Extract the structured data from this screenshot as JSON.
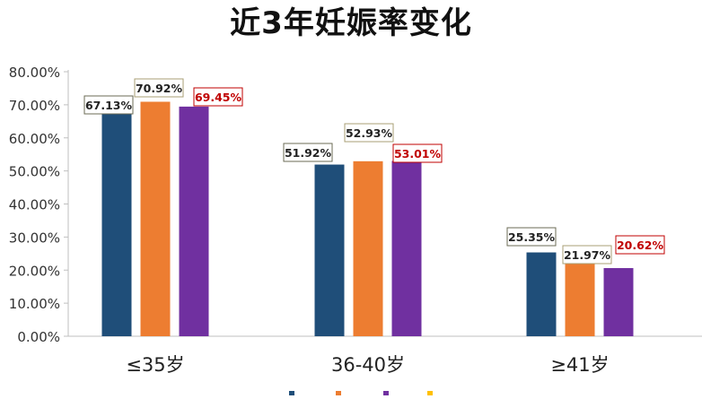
{
  "chart_data": {
    "type": "bar",
    "title": "近3年妊娠率变化",
    "xlabel": "",
    "ylabel": "",
    "categories": [
      "≤35岁",
      "36-40岁",
      "≥41岁"
    ],
    "series": [
      {
        "name": "",
        "color": "#1f4e79",
        "values": [
          67.13,
          51.92,
          25.35
        ],
        "labels": [
          "67.13%",
          "51.92%",
          "25.35%"
        ]
      },
      {
        "name": "",
        "color": "#ed7d31",
        "values": [
          70.92,
          52.93,
          21.97
        ],
        "labels": [
          "70.92%",
          "52.93%",
          "21.97%"
        ]
      },
      {
        "name": "",
        "color": "#7030a0",
        "values": [
          69.45,
          53.01,
          20.62
        ],
        "labels": [
          "69.45%",
          "53.01%",
          "20.62%"
        ]
      }
    ],
    "ylim": [
      0,
      80
    ],
    "yticks": [
      "0.00%",
      "10.00%",
      "20.00%",
      "30.00%",
      "40.00%",
      "50.00%",
      "60.00%",
      "70.00%",
      "80.00%"
    ],
    "grid": false,
    "label_colors": [
      "#222222",
      "#222222",
      "#c00000"
    ],
    "label_borders": [
      "#6b6b55",
      "#a89f74",
      "#c00000"
    ]
  }
}
